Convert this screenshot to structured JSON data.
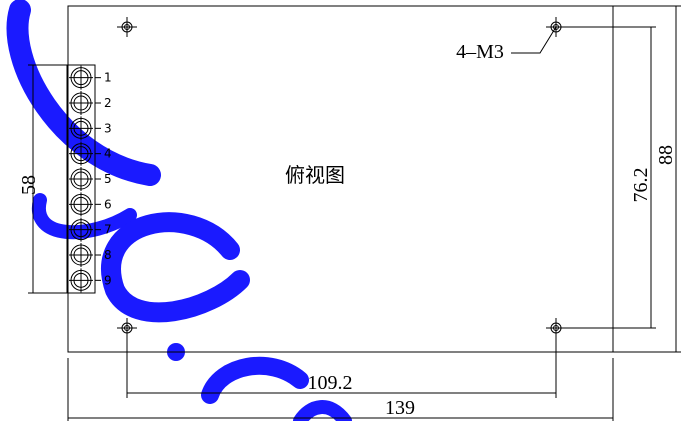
{
  "view_title": "俯视图",
  "hole_label": "4–M3",
  "terminal_labels": [
    "1",
    "2",
    "3",
    "4",
    "5",
    "6",
    "7",
    "8",
    "9"
  ],
  "dimensions": {
    "terminal_span": "58",
    "hole_height": "76.2",
    "board_height": "88",
    "hole_width": "109.2",
    "board_width": "139"
  }
}
